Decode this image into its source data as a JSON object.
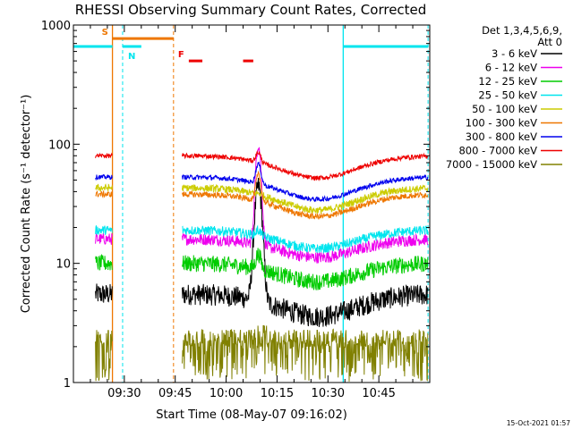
{
  "chart_data": {
    "type": "line",
    "title": "RHESSI Observing Summary Count Rates, Corrected",
    "xlabel": "Start Time (08-May-07 09:16:02)",
    "ylabel": "Corrected Count Rate (s⁻¹ detector⁻¹)",
    "y_scale": "log",
    "ylim": [
      1,
      1000
    ],
    "y_ticks": [
      {
        "value": 1,
        "label": "1"
      },
      {
        "value": 10,
        "label": "10"
      },
      {
        "value": 100,
        "label": "100"
      },
      {
        "value": 1000,
        "label": "1000"
      }
    ],
    "xlim": [
      555,
      660
    ],
    "x_ticks": [
      {
        "value": 570,
        "label": "09:30"
      },
      {
        "value": 585,
        "label": "09:45"
      },
      {
        "value": 600,
        "label": "10:00"
      },
      {
        "value": 615,
        "label": "10:15"
      },
      {
        "value": 630,
        "label": "10:30"
      },
      {
        "value": 645,
        "label": "10:45"
      }
    ],
    "legend_header": [
      "Det 1,3,4,5,6,9,",
      "Att 0"
    ],
    "legend_placement": "right",
    "series": [
      {
        "name": "3 - 6 keV",
        "color": "#000000",
        "baseline": 5.5,
        "noise": 0.09,
        "shape": "low",
        "peak": 45,
        "blocks": true
      },
      {
        "name": "6 - 12 keV",
        "color": "#ee00ee",
        "baseline": 16,
        "noise": 0.05,
        "shape": "mid",
        "peak": 100,
        "blocks": false
      },
      {
        "name": "12 - 25 keV",
        "color": "#00cc00",
        "baseline": 10,
        "noise": 0.07,
        "shape": "mid",
        "peak": 13,
        "blocks": true
      },
      {
        "name": "25 - 50 keV",
        "color": "#00e5ee",
        "baseline": 19,
        "noise": 0.04,
        "shape": "mid",
        "peak": 21,
        "blocks": true
      },
      {
        "name": "50 - 100 keV",
        "color": "#cccc00",
        "baseline": 43,
        "noise": 0.03,
        "shape": "hi",
        "peak": 44,
        "blocks": false
      },
      {
        "name": "100 - 300 keV",
        "color": "#ee7700",
        "baseline": 38,
        "noise": 0.025,
        "shape": "hi",
        "peak": 60,
        "blocks": true
      },
      {
        "name": "300 - 800 keV",
        "color": "#0000ee",
        "baseline": 53,
        "noise": 0.02,
        "shape": "hi",
        "peak": 75,
        "blocks": true
      },
      {
        "name": "800 - 7000 keV",
        "color": "#ee0000",
        "baseline": 80,
        "noise": 0.02,
        "shape": "hi",
        "peak": 95,
        "blocks": true
      },
      {
        "name": "7000 - 15000 keV",
        "color": "#808000",
        "baseline": 2,
        "noise": 0.0,
        "shape": "flat",
        "peak": 2,
        "blocks": true
      }
    ],
    "intervals": [
      {
        "label": "S",
        "start": 566.5,
        "end": 584.5,
        "color": "#ee7700",
        "level": 770
      },
      {
        "label": "N",
        "start": 569.5,
        "end": 575.0,
        "color": "#00e5ee",
        "level": 660
      },
      {
        "label": "F",
        "start": 589.0,
        "end": 593.0,
        "color": "#ee0000",
        "level": 500
      },
      {
        "label": "",
        "start": 605.0,
        "end": 608.0,
        "color": "#ee0000",
        "level": 500
      }
    ],
    "night_bars": [
      {
        "start": 555.0,
        "end": 566.5,
        "level": 660
      },
      {
        "start": 634.5,
        "end": 659.5,
        "level": 660
      }
    ],
    "vlines_solid": [
      {
        "x": 566.5,
        "color": "#ee7700"
      },
      {
        "x": 634.5,
        "color": "#00e5ee"
      }
    ],
    "vlines_dashed": [
      {
        "x": 569.5,
        "color": "#00e5ee"
      },
      {
        "x": 584.5,
        "color": "#ee7700"
      },
      {
        "x": 659.5,
        "color": "#00e5ee"
      }
    ],
    "data_start": 561.5,
    "data_end": 659.5,
    "gap_start": 566.5,
    "gap_end": 587.0,
    "flare_time": 609.5,
    "footer_stamp": "15-Oct-2021 01:57"
  }
}
